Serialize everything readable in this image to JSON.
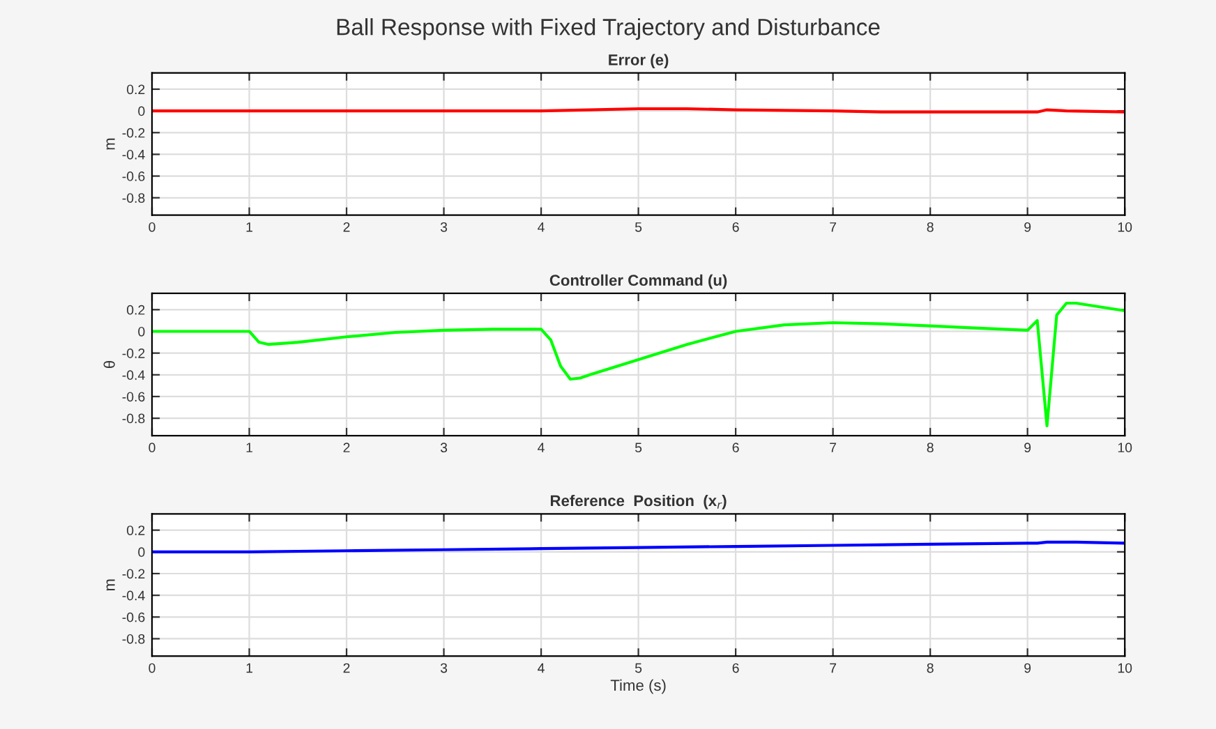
{
  "chart_data": [
    {
      "type": "line",
      "title": "Ball Response with Fixed Trajectory and Disturbance",
      "subtitle": "Error (e)",
      "ylabel": "m",
      "xlim": [
        0,
        10
      ],
      "xticks": [
        0,
        1,
        2,
        3,
        4,
        5,
        6,
        7,
        8,
        9,
        10
      ],
      "ylim": [
        -0.96,
        0.35
      ],
      "yticks": [
        0.2,
        0,
        -0.2,
        -0.4,
        -0.6,
        -0.8
      ],
      "grid": true,
      "legend": false,
      "series": [
        {
          "color": "#ff0000",
          "x": [
            0,
            1,
            1.5,
            2,
            3,
            4,
            4.5,
            5,
            5.5,
            6,
            7,
            7.5,
            8,
            8.5,
            9,
            9.1,
            9.2,
            9.4,
            10
          ],
          "values": [
            0,
            0,
            0,
            0,
            0,
            0,
            0.01,
            0.02,
            0.02,
            0.01,
            0,
            -0.01,
            -0.01,
            -0.01,
            -0.01,
            -0.01,
            0.01,
            0,
            -0.01
          ]
        }
      ]
    },
    {
      "type": "line",
      "title": "Controller Command (u)",
      "ylabel": "θ",
      "xlim": [
        0,
        10
      ],
      "xticks": [
        0,
        1,
        2,
        3,
        4,
        5,
        6,
        7,
        8,
        9,
        10
      ],
      "ylim": [
        -0.96,
        0.35
      ],
      "yticks": [
        0.2,
        0,
        -0.2,
        -0.4,
        -0.6,
        -0.8
      ],
      "grid": true,
      "legend": false,
      "series": [
        {
          "color": "#00ff00",
          "x": [
            0,
            1,
            1.1,
            1.2,
            1.5,
            2,
            2.5,
            3,
            3.5,
            4,
            4.1,
            4.2,
            4.3,
            4.4,
            4.5,
            5,
            5.5,
            6,
            6.5,
            7,
            7.5,
            8,
            8.5,
            9,
            9.1,
            9.2,
            9.3,
            9.4,
            9.5,
            10
          ],
          "values": [
            0,
            0,
            -0.1,
            -0.12,
            -0.1,
            -0.05,
            -0.01,
            0.01,
            0.02,
            0.02,
            -0.08,
            -0.32,
            -0.44,
            -0.43,
            -0.4,
            -0.26,
            -0.12,
            0,
            0.06,
            0.08,
            0.07,
            0.05,
            0.03,
            0.01,
            0.1,
            -0.87,
            0.15,
            0.26,
            0.26,
            0.19
          ]
        }
      ]
    },
    {
      "type": "line",
      "title": "Reference  Position  (x$_{r}$)",
      "xlabel": "Time (s)",
      "ylabel": "m",
      "xlim": [
        0,
        10
      ],
      "xticks": [
        0,
        1,
        2,
        3,
        4,
        5,
        6,
        7,
        8,
        9,
        10
      ],
      "ylim": [
        -0.96,
        0.35
      ],
      "yticks": [
        0.2,
        0,
        -0.2,
        -0.4,
        -0.6,
        -0.8
      ],
      "grid": true,
      "legend": false,
      "series": [
        {
          "color": "#0000ff",
          "x": [
            0,
            1,
            2,
            3,
            4,
            5,
            6,
            7,
            8,
            9,
            9.1,
            9.2,
            9.5,
            10
          ],
          "values": [
            0,
            0,
            0.01,
            0.02,
            0.03,
            0.04,
            0.05,
            0.06,
            0.07,
            0.08,
            0.08,
            0.09,
            0.09,
            0.08
          ]
        }
      ]
    }
  ]
}
